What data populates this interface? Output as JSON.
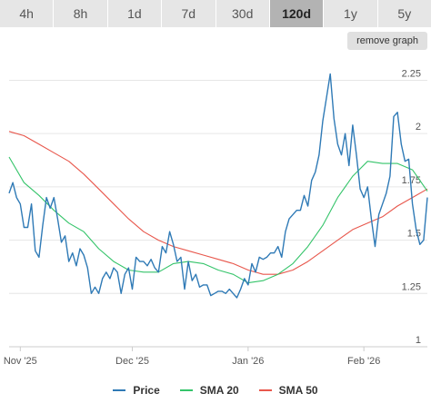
{
  "range_tabs": [
    "4h",
    "8h",
    "1d",
    "7d",
    "30d",
    "120d",
    "1y",
    "5y"
  ],
  "active_tab": "120d",
  "remove_graph_label": "remove graph",
  "chart_data": {
    "type": "line",
    "title": "",
    "xlabel": "",
    "ylabel": "",
    "ylim": [
      1,
      2.35
    ],
    "y_ticks": [
      "1",
      "1.25",
      "1.5",
      "1.75",
      "2",
      "2.25"
    ],
    "x_ticks": [
      {
        "label": "Nov '25",
        "day": 3
      },
      {
        "label": "Dec '25",
        "day": 33
      },
      {
        "label": "Jan '26",
        "day": 64
      },
      {
        "label": "Feb '26",
        "day": 95
      }
    ],
    "xlim": [
      0,
      112
    ],
    "grid": true,
    "legend_position": "bottom",
    "series": [
      {
        "name": "Price",
        "color": "#2f7ab6",
        "x": [
          0,
          1,
          2,
          3,
          4,
          5,
          6,
          7,
          8,
          9,
          10,
          11,
          12,
          13,
          14,
          15,
          16,
          17,
          18,
          19,
          20,
          21,
          22,
          23,
          24,
          25,
          26,
          27,
          28,
          29,
          30,
          31,
          32,
          33,
          34,
          35,
          36,
          37,
          38,
          39,
          40,
          41,
          42,
          43,
          44,
          45,
          46,
          47,
          48,
          49,
          50,
          51,
          52,
          53,
          54,
          55,
          56,
          57,
          58,
          59,
          60,
          61,
          62,
          63,
          64,
          65,
          66,
          67,
          68,
          69,
          70,
          71,
          72,
          73,
          74,
          75,
          76,
          77,
          78,
          79,
          80,
          81,
          82,
          83,
          84,
          85,
          86,
          87,
          88,
          89,
          90,
          91,
          92,
          93,
          94,
          95,
          96,
          97,
          98,
          99,
          100,
          101,
          102,
          103,
          104,
          105,
          106,
          107,
          108,
          109,
          110,
          111,
          112
        ],
        "values": [
          1.72,
          1.77,
          1.7,
          1.67,
          1.56,
          1.56,
          1.67,
          1.45,
          1.42,
          1.57,
          1.7,
          1.65,
          1.7,
          1.6,
          1.49,
          1.52,
          1.4,
          1.44,
          1.38,
          1.46,
          1.43,
          1.37,
          1.25,
          1.28,
          1.25,
          1.32,
          1.35,
          1.32,
          1.37,
          1.35,
          1.25,
          1.34,
          1.37,
          1.27,
          1.42,
          1.4,
          1.4,
          1.38,
          1.41,
          1.37,
          1.35,
          1.47,
          1.44,
          1.54,
          1.48,
          1.4,
          1.42,
          1.27,
          1.4,
          1.31,
          1.34,
          1.28,
          1.29,
          1.29,
          1.24,
          1.25,
          1.26,
          1.26,
          1.25,
          1.27,
          1.25,
          1.23,
          1.27,
          1.32,
          1.29,
          1.39,
          1.35,
          1.42,
          1.41,
          1.42,
          1.44,
          1.44,
          1.47,
          1.42,
          1.54,
          1.6,
          1.62,
          1.64,
          1.64,
          1.71,
          1.66,
          1.78,
          1.82,
          1.9,
          2.06,
          2.17,
          2.28,
          2.07,
          1.95,
          1.9,
          2.0,
          1.85,
          2.04,
          1.9,
          1.74,
          1.7,
          1.75,
          1.6,
          1.47,
          1.62,
          1.67,
          1.72,
          1.8,
          2.08,
          2.1,
          1.95,
          1.87,
          1.88,
          1.67,
          1.55,
          1.48,
          1.5,
          1.7
        ]
      },
      {
        "name": "SMA 20",
        "color": "#35c46a",
        "x": [
          0,
          4,
          8,
          12,
          16,
          20,
          24,
          28,
          32,
          36,
          40,
          44,
          48,
          52,
          56,
          60,
          64,
          68,
          72,
          76,
          80,
          84,
          88,
          92,
          96,
          100,
          104,
          108,
          112
        ],
        "values": [
          1.89,
          1.77,
          1.71,
          1.64,
          1.58,
          1.54,
          1.46,
          1.4,
          1.36,
          1.35,
          1.35,
          1.39,
          1.4,
          1.39,
          1.36,
          1.34,
          1.3,
          1.31,
          1.34,
          1.39,
          1.47,
          1.57,
          1.7,
          1.8,
          1.87,
          1.86,
          1.86,
          1.83,
          1.73
        ]
      },
      {
        "name": "SMA 50",
        "color": "#e8574c",
        "x": [
          0,
          4,
          8,
          12,
          16,
          20,
          24,
          28,
          32,
          36,
          40,
          44,
          48,
          52,
          56,
          60,
          64,
          68,
          72,
          76,
          80,
          84,
          88,
          92,
          96,
          100,
          104,
          108,
          112
        ],
        "values": [
          2.01,
          1.99,
          1.95,
          1.91,
          1.87,
          1.81,
          1.74,
          1.67,
          1.6,
          1.54,
          1.5,
          1.47,
          1.45,
          1.43,
          1.41,
          1.39,
          1.36,
          1.34,
          1.34,
          1.36,
          1.4,
          1.45,
          1.5,
          1.55,
          1.58,
          1.61,
          1.66,
          1.7,
          1.74
        ]
      }
    ]
  }
}
